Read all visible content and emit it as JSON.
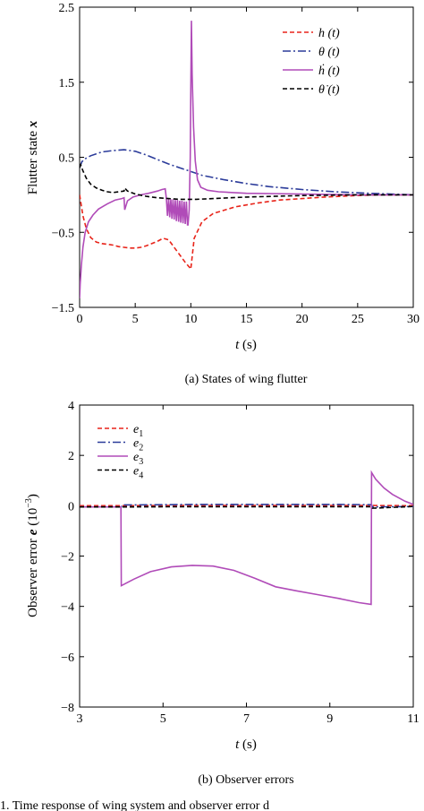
{
  "chart_data": [
    {
      "type": "line",
      "caption": "(a) States of wing flutter",
      "xlabel_var": "t",
      "xlabel_unit": " (s)",
      "ylabel": "Flutter state ",
      "ylabel_var": "x",
      "xlim": [
        0,
        30
      ],
      "ylim": [
        -1.5,
        2.5
      ],
      "xticks": [
        0,
        5,
        10,
        15,
        20,
        25,
        30
      ],
      "xtick_labels": [
        "0",
        "5",
        "10",
        "15",
        "20",
        "25",
        "30"
      ],
      "yticks": [
        2.5,
        1.5,
        0.5,
        -0.5,
        -1.5
      ],
      "ytick_labels": [
        "2.5",
        "1.5",
        "0.5",
        "−0.5",
        "−1.5"
      ],
      "legend_position": "top-right",
      "grid": false,
      "series": [
        {
          "name": "h (t)",
          "color": "#e8241a",
          "dash": "5,3",
          "x": [
            0,
            0.3,
            0.6,
            1,
            1.5,
            2,
            2.5,
            3,
            3.5,
            4,
            4.5,
            5,
            5.5,
            6,
            6.5,
            7,
            7.5,
            8,
            8.5,
            9,
            9.5,
            9.9,
            10,
            10.3,
            11,
            12,
            14,
            16,
            18,
            20,
            22,
            25,
            27,
            30
          ],
          "y": [
            0,
            -0.28,
            -0.45,
            -0.57,
            -0.63,
            -0.65,
            -0.66,
            -0.67,
            -0.69,
            -0.7,
            -0.71,
            -0.71,
            -0.7,
            -0.68,
            -0.65,
            -0.62,
            -0.58,
            -0.6,
            -0.7,
            -0.8,
            -0.9,
            -0.97,
            -0.99,
            -0.58,
            -0.36,
            -0.25,
            -0.16,
            -0.11,
            -0.07,
            -0.05,
            -0.03,
            -0.01,
            0,
            0
          ]
        },
        {
          "name": "θ (t)",
          "color": "#2b3b9a",
          "dash": "9,3,2,3",
          "x": [
            0,
            0.2,
            0.5,
            1,
            2,
            3,
            4,
            5,
            6,
            7,
            8,
            9,
            10,
            11,
            13,
            15,
            17,
            20,
            23,
            26,
            28,
            30
          ],
          "y": [
            0.36,
            0.44,
            0.48,
            0.52,
            0.57,
            0.59,
            0.6,
            0.58,
            0.53,
            0.47,
            0.41,
            0.36,
            0.31,
            0.26,
            0.2,
            0.15,
            0.11,
            0.07,
            0.04,
            0.02,
            0.01,
            0
          ]
        },
        {
          "name": "ḣ (t)",
          "color": "#b04bb8",
          "dash": "",
          "x": [
            0,
            0.05,
            0.15,
            0.3,
            0.5,
            0.8,
            1.2,
            1.7,
            2.5,
            3.2,
            3.8,
            4.0,
            4.05,
            4.3,
            4.8,
            5.5,
            6.2,
            7,
            7.4,
            7.7,
            7.8,
            7.9,
            8.0,
            8.1,
            8.2,
            8.3,
            8.4,
            8.5,
            8.6,
            8.7,
            8.8,
            8.9,
            9.0,
            9.1,
            9.2,
            9.3,
            9.4,
            9.5,
            9.6,
            9.7,
            9.75,
            9.85,
            9.95,
            10.0,
            10.05,
            10.12,
            10.25,
            10.4,
            10.6,
            10.9,
            11.5,
            12.5,
            15,
            20,
            25,
            30
          ],
          "y": [
            -1.38,
            -1.2,
            -0.95,
            -0.7,
            -0.5,
            -0.36,
            -0.27,
            -0.19,
            -0.12,
            -0.07,
            -0.05,
            -0.04,
            -0.2,
            -0.08,
            -0.03,
            0,
            0.02,
            0.05,
            0.07,
            0.08,
            -0.05,
            -0.28,
            -0.05,
            -0.3,
            -0.06,
            -0.32,
            -0.06,
            -0.33,
            -0.07,
            -0.35,
            -0.07,
            -0.36,
            -0.08,
            -0.37,
            -0.08,
            -0.38,
            -0.09,
            -0.39,
            -0.09,
            -0.4,
            -0.4,
            -0.2,
            0.5,
            1.4,
            2.32,
            1.6,
            0.9,
            0.45,
            0.2,
            0.1,
            0.06,
            0.04,
            0.02,
            0.01,
            0,
            0
          ]
        },
        {
          "name": "θ̇ (t)",
          "color": "#000000",
          "dash": "5,3",
          "x": [
            0,
            0.1,
            0.3,
            0.6,
            1,
            1.5,
            2,
            2.5,
            3,
            3.5,
            4,
            4.05,
            4.3,
            5,
            6,
            7,
            8,
            9,
            10,
            10.5,
            12,
            15,
            20,
            25,
            30
          ],
          "y": [
            0.36,
            0.4,
            0.32,
            0.22,
            0.14,
            0.09,
            0.06,
            0.04,
            0.03,
            0.04,
            0.05,
            0.09,
            0.05,
            0.01,
            -0.02,
            -0.04,
            -0.05,
            -0.06,
            -0.06,
            -0.06,
            -0.05,
            -0.03,
            -0.01,
            0,
            0
          ]
        }
      ]
    },
    {
      "type": "line",
      "caption": "(b) Observer errors",
      "xlabel_var": "t",
      "xlabel_unit": " (s)",
      "ylabel": "Observer error ",
      "ylabel_var": "e",
      "ylabel_unit": " (10",
      "ylabel_exp": "−3",
      "ylabel_close": ")",
      "xlim": [
        3,
        11
      ],
      "ylim": [
        -8,
        4
      ],
      "xticks": [
        3,
        5,
        7,
        9,
        11
      ],
      "xtick_labels": [
        "3",
        "5",
        "7",
        "9",
        "11"
      ],
      "yticks": [
        4,
        2,
        0,
        -2,
        -4,
        -6,
        -8
      ],
      "ytick_labels": [
        "4",
        "2",
        "0",
        "−2",
        "−4",
        "−6",
        "−8"
      ],
      "legend_position": "top-left",
      "grid": false,
      "series": [
        {
          "name": "e1",
          "label_base": "e",
          "label_sub": "1",
          "color": "#e8241a",
          "dash": "5,3",
          "x": [
            3,
            4,
            5,
            6,
            7,
            8,
            9,
            10,
            11
          ],
          "y": [
            0,
            0,
            0.01,
            0.01,
            0.01,
            0.01,
            0.01,
            0.01,
            0
          ]
        },
        {
          "name": "e2",
          "label_base": "e",
          "label_sub": "2",
          "color": "#2b3b9a",
          "dash": "9,3,2,3",
          "x": [
            3,
            4,
            4.02,
            5,
            6,
            7,
            8,
            9,
            10,
            10.02,
            11
          ],
          "y": [
            -0.05,
            -0.05,
            0.03,
            0.04,
            0.05,
            0.05,
            0.05,
            0.05,
            0.04,
            -0.05,
            -0.03
          ]
        },
        {
          "name": "e3",
          "label_base": "e",
          "label_sub": "3",
          "color": "#b04bb8",
          "dash": "",
          "x": [
            3,
            3.99,
            4.0,
            4.3,
            4.7,
            5.2,
            5.7,
            6.2,
            6.7,
            7.2,
            7.7,
            8.2,
            8.7,
            9.2,
            9.7,
            9.99,
            10.0,
            10.1,
            10.3,
            10.5,
            10.8,
            11
          ],
          "y": [
            -0.05,
            -0.05,
            -3.18,
            -2.92,
            -2.62,
            -2.43,
            -2.37,
            -2.4,
            -2.57,
            -2.88,
            -3.22,
            -3.38,
            -3.53,
            -3.68,
            -3.85,
            -3.92,
            1.32,
            1.05,
            0.7,
            0.45,
            0.18,
            0.05
          ]
        },
        {
          "name": "e4",
          "label_base": "e",
          "label_sub": "4",
          "color": "#000000",
          "dash": "5,3",
          "x": [
            3,
            4,
            5,
            6,
            7,
            8,
            9,
            10,
            10.02,
            11
          ],
          "y": [
            -0.05,
            -0.05,
            -0.04,
            -0.04,
            -0.04,
            -0.04,
            -0.04,
            -0.04,
            -0.1,
            -0.03
          ]
        }
      ]
    }
  ],
  "footer_text": "1. Time response of wing system and observer error d"
}
